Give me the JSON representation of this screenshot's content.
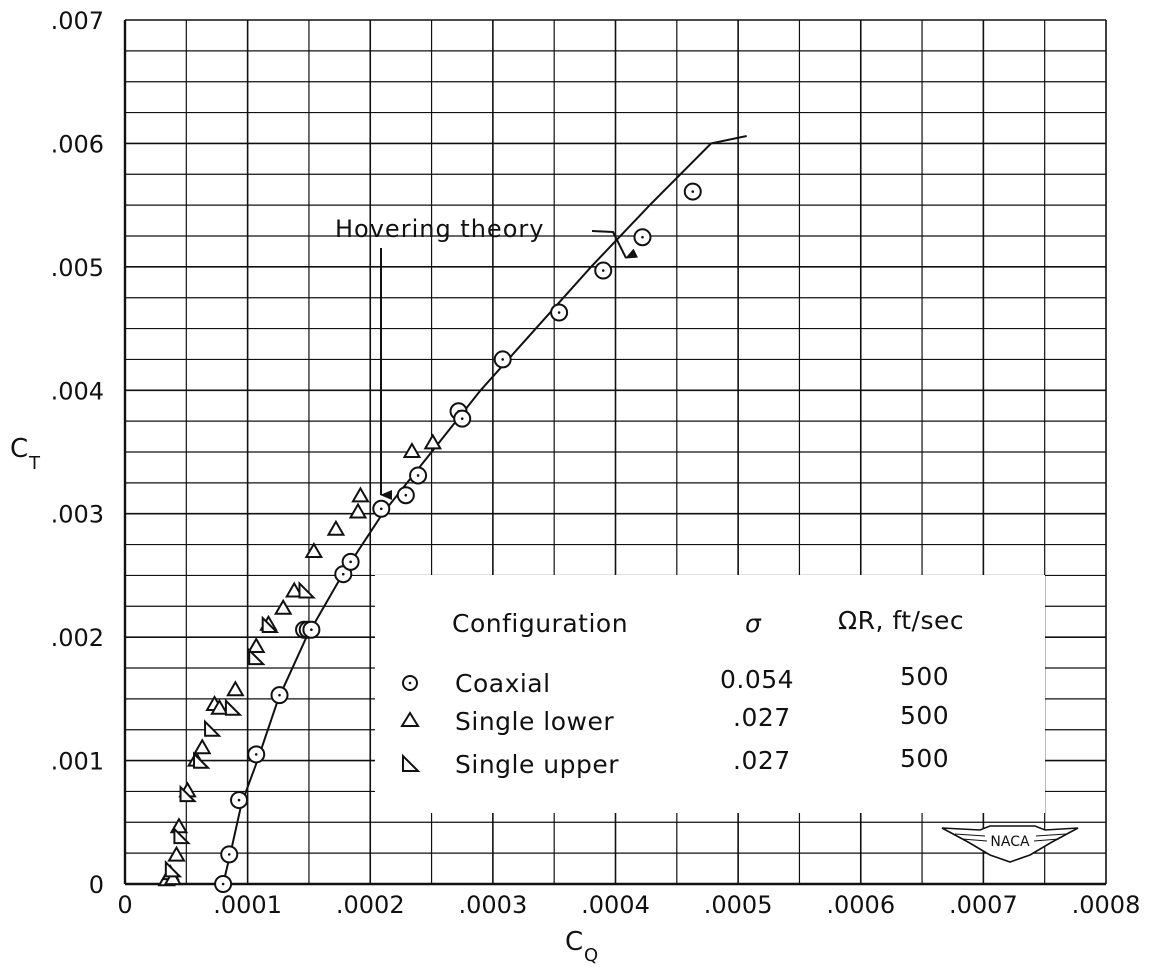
{
  "chart_data": {
    "type": "scatter",
    "title": "",
    "xlabel": "C",
    "xlabel_sub": "Q",
    "ylabel": "C",
    "ylabel_sub": "T",
    "xlim": [
      0,
      0.0008
    ],
    "ylim": [
      0,
      0.007
    ],
    "grid": true,
    "x_ticks": [
      {
        "value": 0,
        "label": "0"
      },
      {
        "value": 0.0001,
        "label": ".0001"
      },
      {
        "value": 0.0002,
        "label": ".0002"
      },
      {
        "value": 0.0003,
        "label": ".0003"
      },
      {
        "value": 0.0004,
        "label": ".0004"
      },
      {
        "value": 0.0005,
        "label": ".0005"
      },
      {
        "value": 0.0006,
        "label": ".0006"
      },
      {
        "value": 0.0007,
        "label": ".0007"
      },
      {
        "value": 0.0008,
        "label": ".0008"
      }
    ],
    "y_ticks": [
      {
        "value": 0,
        "label": "0"
      },
      {
        "value": 0.001,
        "label": ".001"
      },
      {
        "value": 0.002,
        "label": ".002"
      },
      {
        "value": 0.003,
        "label": ".003"
      },
      {
        "value": 0.004,
        "label": ".004"
      },
      {
        "value": 0.005,
        "label": ".005"
      },
      {
        "value": 0.006,
        "label": ".006"
      },
      {
        "value": 0.007,
        "label": ".007"
      }
    ],
    "series": [
      {
        "name": "Coaxial",
        "marker": "circle",
        "points": [
          [
            8e-05,
            0.0
          ],
          [
            8.5e-05,
            0.00024
          ],
          [
            9.3e-05,
            0.00068
          ],
          [
            0.000107,
            0.00105
          ],
          [
            0.000126,
            0.00153
          ],
          [
            0.000146,
            0.00206
          ],
          [
            0.000149,
            0.00206
          ],
          [
            0.000152,
            0.00206
          ],
          [
            0.000178,
            0.00251
          ],
          [
            0.000184,
            0.00261
          ],
          [
            0.000209,
            0.00304
          ],
          [
            0.000229,
            0.00315
          ],
          [
            0.000239,
            0.00331
          ],
          [
            0.000272,
            0.00383
          ],
          [
            0.000275,
            0.00377
          ],
          [
            0.000308,
            0.00425
          ],
          [
            0.000354,
            0.00463
          ],
          [
            0.00039,
            0.00497
          ],
          [
            0.000422,
            0.00524
          ],
          [
            0.000463,
            0.00561
          ]
        ]
      },
      {
        "name": "Single lower",
        "marker": "triangle",
        "points": [
          [
            3.4e-05,
            3e-05
          ],
          [
            3.7e-05,
            8e-05
          ],
          [
            3.9e-05,
            4e-05
          ],
          [
            4.2e-05,
            0.00023
          ],
          [
            4.4e-05,
            0.00046
          ],
          [
            5.1e-05,
            0.00075
          ],
          [
            5.8e-05,
            0.001
          ],
          [
            6.3e-05,
            0.0011
          ],
          [
            7.3e-05,
            0.00145
          ],
          [
            7.7e-05,
            0.00142
          ],
          [
            9e-05,
            0.00157
          ],
          [
            0.000107,
            0.00192
          ],
          [
            0.000117,
            0.0021
          ],
          [
            0.000129,
            0.00223
          ],
          [
            0.000138,
            0.00237
          ],
          [
            0.000154,
            0.00269
          ],
          [
            0.000172,
            0.00287
          ],
          [
            0.00019,
            0.00301
          ],
          [
            0.000192,
            0.00314
          ],
          [
            0.000234,
            0.0035
          ],
          [
            0.000251,
            0.00357
          ]
        ]
      },
      {
        "name": "Single upper",
        "marker": "right-triangle",
        "points": [
          [
            3.9e-05,
            0.00011
          ],
          [
            4.6e-05,
            0.00038
          ],
          [
            5.1e-05,
            0.00072
          ],
          [
            6.2e-05,
            0.00099
          ],
          [
            7.1e-05,
            0.00125
          ],
          [
            8.8e-05,
            0.00142
          ],
          [
            0.000107,
            0.00183
          ],
          [
            0.000118,
            0.00209
          ],
          [
            0.000148,
            0.00237
          ]
        ]
      }
    ],
    "theory_curve": {
      "label": "Hovering theory",
      "points": [
        [
          8e-05,
          0.0
        ],
        [
          8.6e-05,
          0.00025
        ],
        [
          9.5e-05,
          0.00065
        ],
        [
          0.000108,
          0.001
        ],
        [
          0.000125,
          0.0015
        ],
        [
          0.000148,
          0.002
        ],
        [
          0.000177,
          0.0025
        ],
        [
          0.00021,
          0.003
        ],
        [
          0.00025,
          0.0035
        ],
        [
          0.00029,
          0.004
        ],
        [
          0.000335,
          0.0045
        ],
        [
          0.00038,
          0.005
        ],
        [
          0.000428,
          0.0055
        ],
        [
          0.000478,
          0.006
        ],
        [
          0.000507,
          0.00606
        ]
      ]
    },
    "annotation": {
      "text": "Hovering theory",
      "arrow_targets": [
        [
          0.000207,
          0.003
        ],
        [
          0.000413,
          0.0051
        ]
      ]
    },
    "legend": {
      "placement": "lower-right",
      "headers": [
        "Configuration",
        "σ",
        "ΩR, ft/sec"
      ],
      "rows": [
        {
          "marker": "circle",
          "configuration": "Coaxial",
          "sigma": "0.054",
          "omega_r": "500"
        },
        {
          "marker": "triangle",
          "configuration": "Single lower",
          "sigma": ".027",
          "omega_r": "500"
        },
        {
          "marker": "right-triangle",
          "configuration": "Single upper",
          "sigma": ".027",
          "omega_r": "500"
        }
      ]
    },
    "logo_text": "NACA"
  }
}
